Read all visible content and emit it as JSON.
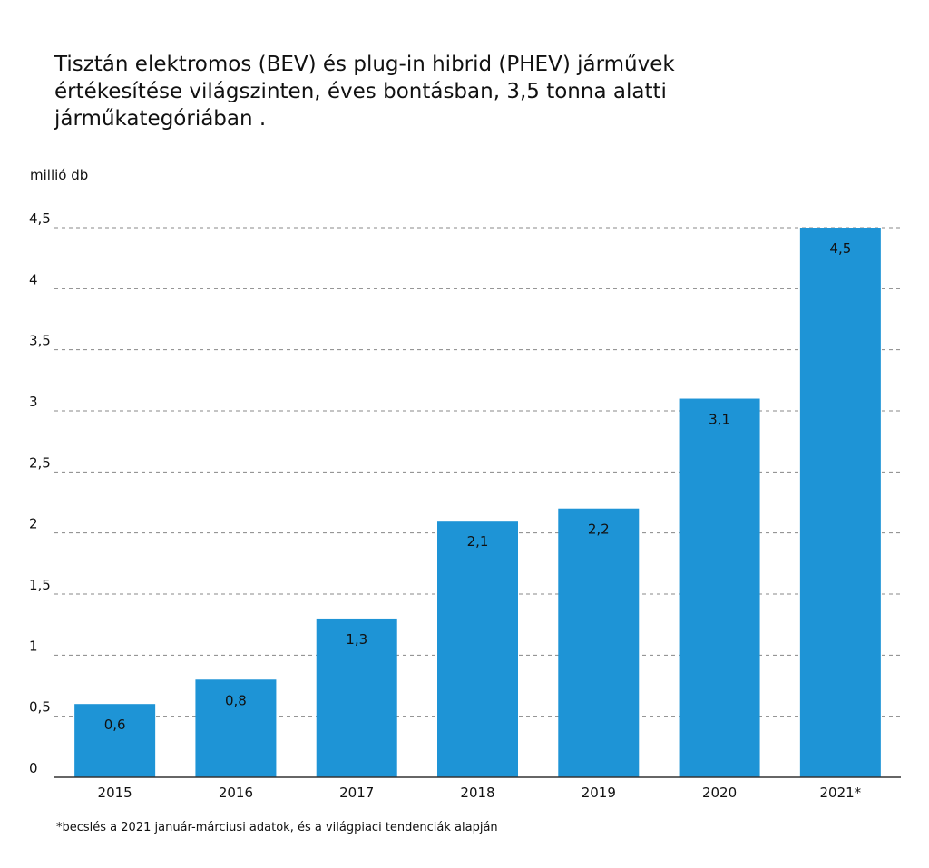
{
  "title_lines": [
    "Tisztán elektromos (BEV) és plug-in hibrid (PHEV) járművek",
    "értékesítése világszinten, éves bontásban, 3,5 tonna alatti",
    "járműkategóriában ."
  ],
  "unit_label": "millió db",
  "footnote": "*becslés a 2021 január-márciusi adatok, és a világpiaci tendenciák alapján",
  "colors": {
    "bar": "#1e94d6",
    "grid": "#888888",
    "axis": "#333333",
    "text": "#111111"
  },
  "chart_data": {
    "type": "bar",
    "categories": [
      "2015",
      "2016",
      "2017",
      "2018",
      "2019",
      "2020",
      "2021*"
    ],
    "values": [
      0.6,
      0.8,
      1.3,
      2.1,
      2.2,
      3.1,
      4.5
    ],
    "data_labels": [
      "0,6",
      "0,8",
      "1,3",
      "2,1",
      "2,2",
      "3,1",
      "4,5"
    ],
    "ylabel": "millió db",
    "ylim": [
      0,
      4.5
    ],
    "y_ticks": [
      0,
      0.5,
      1,
      1.5,
      2,
      2.5,
      3,
      3.5,
      4,
      4.5
    ],
    "y_tick_labels": [
      "0",
      "0,5",
      "1",
      "1,5",
      "2",
      "2,5",
      "3",
      "3,5",
      "4",
      "4,5"
    ],
    "grid": "dashed horizontal",
    "legend": "none"
  }
}
